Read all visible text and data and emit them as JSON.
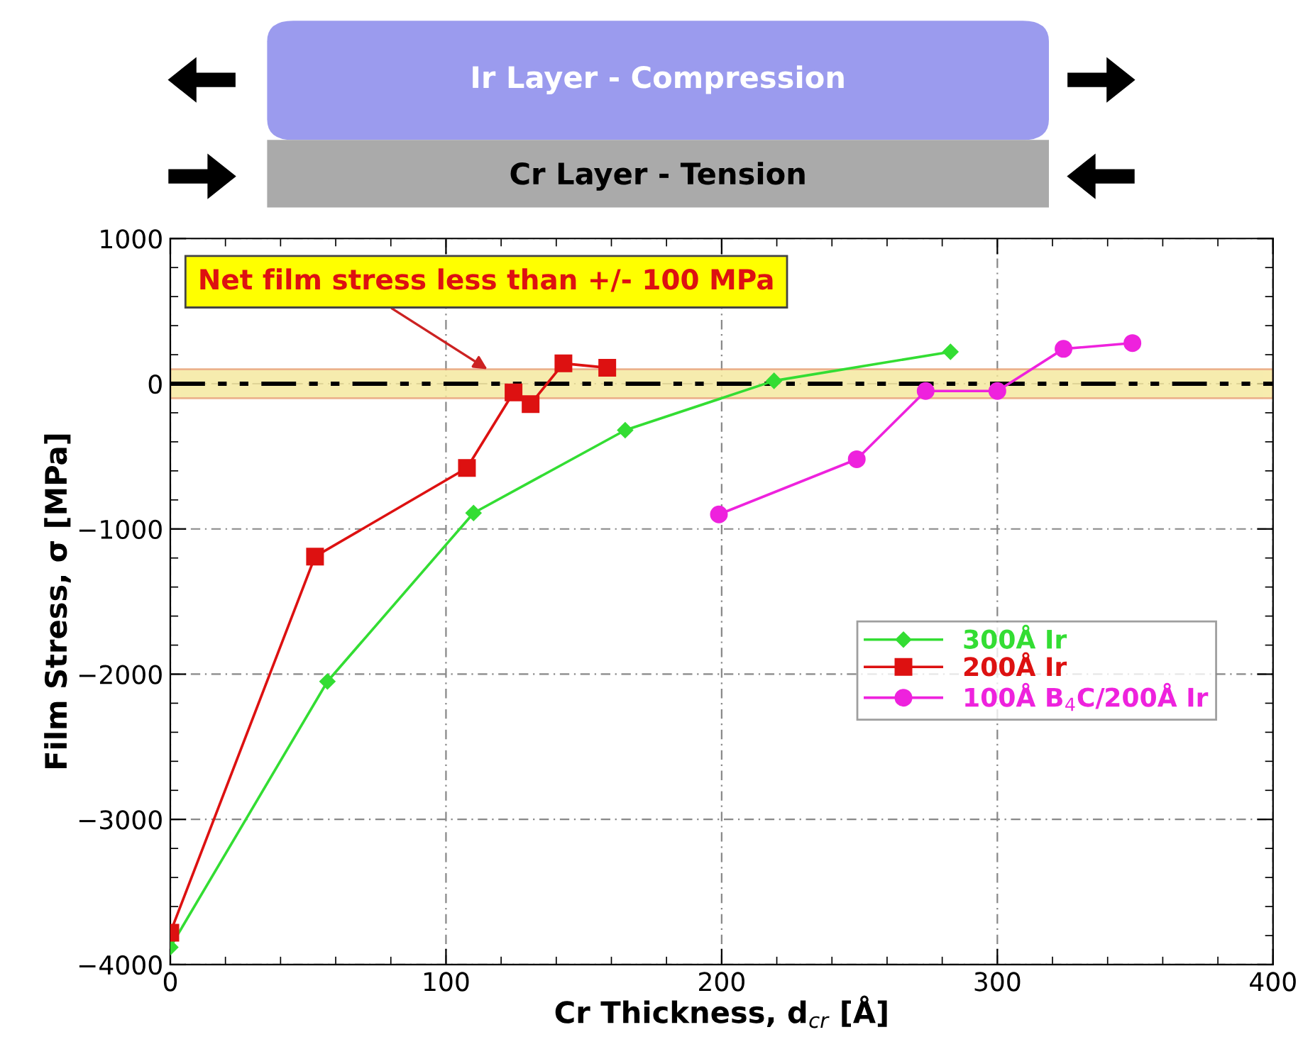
{
  "chart_data": {
    "type": "line",
    "xlabel": "Cr Thickness, d$_{cr}$ [Å]",
    "ylabel": "Film Stress, σ [MPa]",
    "xlim": [
      0,
      400
    ],
    "xticks": [
      0,
      100,
      200,
      300,
      400
    ],
    "ylim": [
      -4000,
      1000
    ],
    "yticks": [
      -4000,
      -3000,
      -2000,
      -1000,
      0,
      1000
    ],
    "grid": true,
    "legend": "center right",
    "series": [
      {
        "name": "300Å Ir",
        "color": "#33dd33",
        "marker": "diamond",
        "x": [
          0,
          57,
          110,
          165,
          219,
          283
        ],
        "values": [
          -3880,
          -2050,
          -890,
          -320,
          20,
          220
        ]
      },
      {
        "name": "200Å Ir",
        "color": "#dd1111",
        "marker": "square",
        "x": [
          0,
          52.5,
          107.6,
          124.5,
          130.7,
          142.6,
          158.5
        ],
        "values": [
          -3780,
          -1190,
          -580,
          -60,
          -140,
          140,
          110
        ]
      },
      {
        "name": "100Å B$_{4}$C/200Å Ir",
        "color": "#ee22dd",
        "marker": "circle",
        "x": [
          199,
          249,
          274,
          300,
          324,
          349
        ],
        "values": [
          -900,
          -520,
          -50,
          -50,
          240,
          280
        ]
      }
    ],
    "ref_lines": [
      {
        "axis": "y",
        "value": 0,
        "color": "#000000",
        "line_style": "dashdotdot"
      }
    ],
    "bands": [
      {
        "axis": "y",
        "from": -100,
        "to": 100,
        "color": "#f5e89a"
      }
    ],
    "annotations": [
      {
        "text": "Net film stress less than +/- 100 MPa",
        "x": 115,
        "y": 100
      },
      "Ir Layer - Compression",
      "Cr Layer - Tension"
    ]
  }
}
